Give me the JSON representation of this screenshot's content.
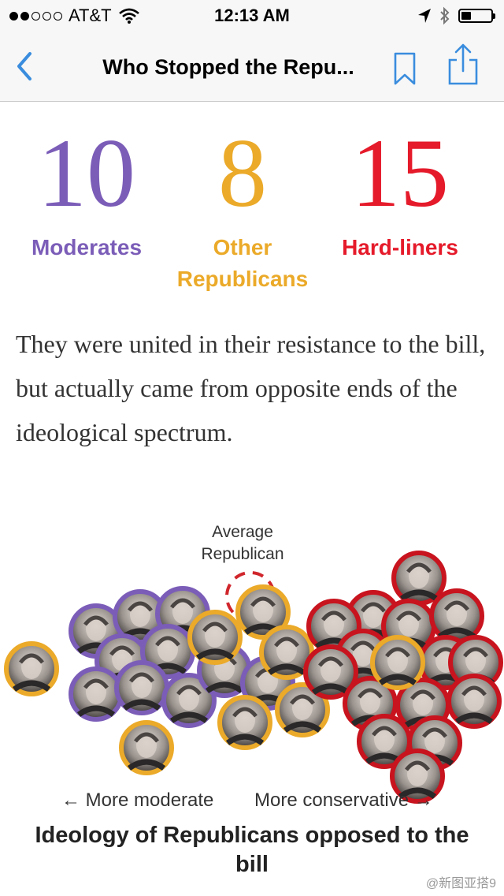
{
  "status_bar": {
    "carrier": "AT&T",
    "time": "12:13 AM"
  },
  "nav": {
    "title": "Who Stopped the Repu..."
  },
  "stats": [
    {
      "number": "10",
      "label": "Moderates",
      "color": "#7b5db8"
    },
    {
      "number": "8",
      "label": "Other Republicans",
      "color": "#ebaa29"
    },
    {
      "number": "15",
      "label": "Hard-liners",
      "color": "#e51a2a"
    }
  ],
  "paragraph": "They were united in their resistance to the bill, but actually came from opposite ends of the ideological spectrum.",
  "chart": {
    "average_label": "Average Republican",
    "left_axis": "← More moderate",
    "right_axis": "More conservative →",
    "caption": "Ideology of Republicans opposed to the bill"
  },
  "colors": {
    "moderate": "#7b5db8",
    "other": "#ebaa29",
    "hardliner": "#c8141e",
    "accent_blue": "#3a8dde"
  },
  "icons": [
    "back-chevron-icon",
    "bookmark-icon",
    "share-icon",
    "wifi-icon",
    "location-arrow-icon",
    "bluetooth-icon",
    "battery-icon"
  ],
  "watermark": "@新图亚搭9"
}
